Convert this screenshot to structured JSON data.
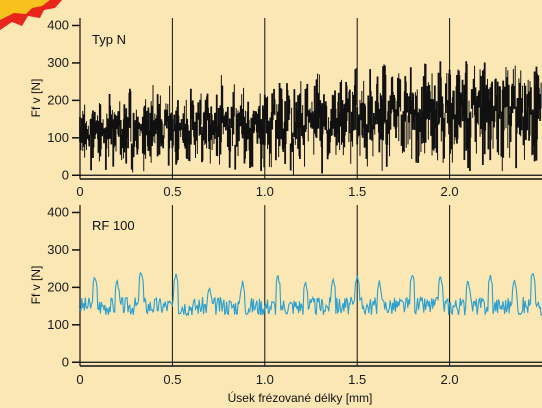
{
  "chart_data": [
    {
      "type": "line",
      "panel_label": "Typ N",
      "ylabel": "Ff v [N]",
      "xlim": [
        0,
        2.5
      ],
      "ylim": [
        -10,
        420
      ],
      "y_ticks": [
        0,
        100,
        200,
        300,
        400
      ],
      "x_ticks": [
        0,
        0.5,
        1.0,
        1.5,
        2.0
      ],
      "x_tick_labels": [
        "0",
        "0.5",
        "1.0",
        "1.5",
        "2.0"
      ],
      "grid": "vertical",
      "color": "#111111",
      "series": [
        {
          "values": [
            [
              0.0,
              60,
              180
            ],
            [
              0.02,
              20,
              210
            ],
            [
              0.04,
              70,
              150
            ],
            [
              0.06,
              0,
              220
            ],
            [
              0.08,
              90,
              170
            ],
            [
              0.1,
              30,
              200
            ],
            [
              0.12,
              80,
              160
            ],
            [
              0.14,
              10,
              190
            ],
            [
              0.16,
              60,
              230
            ],
            [
              0.18,
              0,
              170
            ],
            [
              0.2,
              90,
              210
            ],
            [
              0.22,
              40,
              150
            ],
            [
              0.24,
              20,
              200
            ],
            [
              0.26,
              70,
              240
            ],
            [
              0.28,
              0,
              180
            ],
            [
              0.3,
              50,
              220
            ],
            [
              0.32,
              100,
              160
            ],
            [
              0.34,
              10,
              210
            ],
            [
              0.36,
              60,
              190
            ],
            [
              0.38,
              30,
              250
            ],
            [
              0.4,
              80,
              170
            ],
            [
              0.42,
              0,
              220
            ],
            [
              0.44,
              50,
              150
            ],
            [
              0.46,
              100,
              200
            ],
            [
              0.48,
              20,
              240
            ],
            [
              0.5,
              60,
              180
            ],
            [
              0.52,
              10,
              210
            ],
            [
              0.54,
              90,
              160
            ],
            [
              0.56,
              40,
              230
            ],
            [
              0.58,
              0,
              190
            ],
            [
              0.6,
              70,
              260
            ],
            [
              0.62,
              30,
              170
            ],
            [
              0.64,
              100,
              220
            ],
            [
              0.66,
              10,
              190
            ],
            [
              0.68,
              60,
              240
            ],
            [
              0.7,
              20,
              200
            ],
            [
              0.72,
              80,
              170
            ],
            [
              0.74,
              0,
              230
            ],
            [
              0.76,
              50,
              270
            ],
            [
              0.78,
              110,
              190
            ],
            [
              0.8,
              20,
              210
            ],
            [
              0.82,
              70,
              250
            ],
            [
              0.84,
              0,
              180
            ],
            [
              0.86,
              90,
              220
            ],
            [
              0.88,
              30,
              260
            ],
            [
              0.9,
              60,
              200
            ],
            [
              0.92,
              10,
              240
            ],
            [
              0.94,
              100,
              180
            ],
            [
              0.96,
              40,
              230
            ],
            [
              0.98,
              0,
              210
            ],
            [
              1.0,
              70,
              280
            ],
            [
              1.02,
              20,
              190
            ],
            [
              1.04,
              90,
              240
            ],
            [
              1.06,
              10,
              210
            ],
            [
              1.08,
              60,
              270
            ],
            [
              1.1,
              30,
              200
            ],
            [
              1.12,
              100,
              250
            ],
            [
              1.14,
              0,
              190
            ],
            [
              1.16,
              80,
              230
            ],
            [
              1.18,
              40,
              280
            ],
            [
              1.2,
              10,
              210
            ],
            [
              1.22,
              70,
              250
            ],
            [
              1.24,
              110,
              200
            ],
            [
              1.26,
              20,
              240
            ],
            [
              1.28,
              60,
              290
            ],
            [
              1.3,
              0,
              220
            ],
            [
              1.32,
              90,
              260
            ],
            [
              1.34,
              30,
              200
            ],
            [
              1.36,
              100,
              250
            ],
            [
              1.38,
              10,
              230
            ],
            [
              1.4,
              60,
              280
            ],
            [
              1.42,
              20,
              210
            ],
            [
              1.44,
              80,
              260
            ],
            [
              1.46,
              0,
              230
            ],
            [
              1.48,
              110,
              300
            ],
            [
              1.5,
              40,
              220
            ],
            [
              1.52,
              90,
              260
            ],
            [
              1.54,
              10,
              240
            ],
            [
              1.56,
              70,
              290
            ],
            [
              1.58,
              30,
              220
            ],
            [
              1.6,
              100,
              270
            ],
            [
              1.62,
              0,
              240
            ],
            [
              1.64,
              60,
              300
            ],
            [
              1.66,
              20,
              230
            ],
            [
              1.68,
              110,
              280
            ],
            [
              1.7,
              40,
              250
            ],
            [
              1.72,
              80,
              300
            ],
            [
              1.74,
              10,
              230
            ],
            [
              1.76,
              70,
              270
            ],
            [
              1.78,
              30,
              310
            ],
            [
              1.8,
              100,
              250
            ],
            [
              1.82,
              0,
              280
            ],
            [
              1.84,
              60,
              240
            ],
            [
              1.86,
              20,
              300
            ],
            [
              1.88,
              90,
              260
            ],
            [
              1.9,
              40,
              290
            ],
            [
              1.92,
              10,
              250
            ],
            [
              1.94,
              80,
              310
            ],
            [
              1.96,
              30,
              240
            ],
            [
              1.98,
              100,
              280
            ],
            [
              2.0,
              0,
              300
            ],
            [
              2.02,
              70,
              250
            ],
            [
              2.04,
              20,
              290
            ],
            [
              2.06,
              110,
              260
            ],
            [
              2.08,
              40,
              310
            ],
            [
              2.1,
              10,
              270
            ],
            [
              2.12,
              80,
              300
            ],
            [
              2.14,
              30,
              250
            ],
            [
              2.16,
              100,
              290
            ],
            [
              2.18,
              0,
              320
            ],
            [
              2.2,
              60,
              260
            ],
            [
              2.22,
              20,
              300
            ],
            [
              2.24,
              90,
              270
            ],
            [
              2.26,
              40,
              310
            ],
            [
              2.28,
              10,
              280
            ],
            [
              2.3,
              70,
              300
            ],
            [
              2.32,
              30,
              260
            ],
            [
              2.34,
              100,
              310
            ],
            [
              2.36,
              0,
              280
            ],
            [
              2.38,
              60,
              300
            ],
            [
              2.4,
              20,
              270
            ],
            [
              2.42,
              90,
              310
            ],
            [
              2.44,
              40,
              290
            ],
            [
              2.46,
              10,
              300
            ],
            [
              2.48,
              80,
              280
            ]
          ]
        }
      ]
    },
    {
      "type": "line",
      "panel_label": "RF 100",
      "ylabel": "Ff v [N]",
      "xlabel": "Úsek frézované délky [mm]",
      "xlim": [
        0,
        2.5
      ],
      "ylim": [
        -10,
        420
      ],
      "y_ticks": [
        0,
        100,
        200,
        300,
        400
      ],
      "x_ticks": [
        0,
        0.5,
        1.0,
        1.5,
        2.0
      ],
      "x_tick_labels": [
        "0",
        "0.5",
        "1.0",
        "1.5",
        "2.0"
      ],
      "grid": "vertical",
      "color": "#2a9fd0",
      "series": [
        {
          "baseline": 150,
          "amplitude": 35,
          "peaks": [
            [
              0.08,
              230
            ],
            [
              0.2,
              220
            ],
            [
              0.33,
              245
            ],
            [
              0.52,
              240
            ],
            [
              0.7,
              200
            ],
            [
              0.88,
              215
            ],
            [
              1.07,
              235
            ],
            [
              1.22,
              215
            ],
            [
              1.37,
              225
            ],
            [
              1.5,
              235
            ],
            [
              1.62,
              215
            ],
            [
              1.8,
              240
            ],
            [
              1.95,
              230
            ],
            [
              2.1,
              220
            ],
            [
              2.22,
              235
            ],
            [
              2.35,
              225
            ],
            [
              2.45,
              245
            ]
          ]
        }
      ]
    }
  ]
}
